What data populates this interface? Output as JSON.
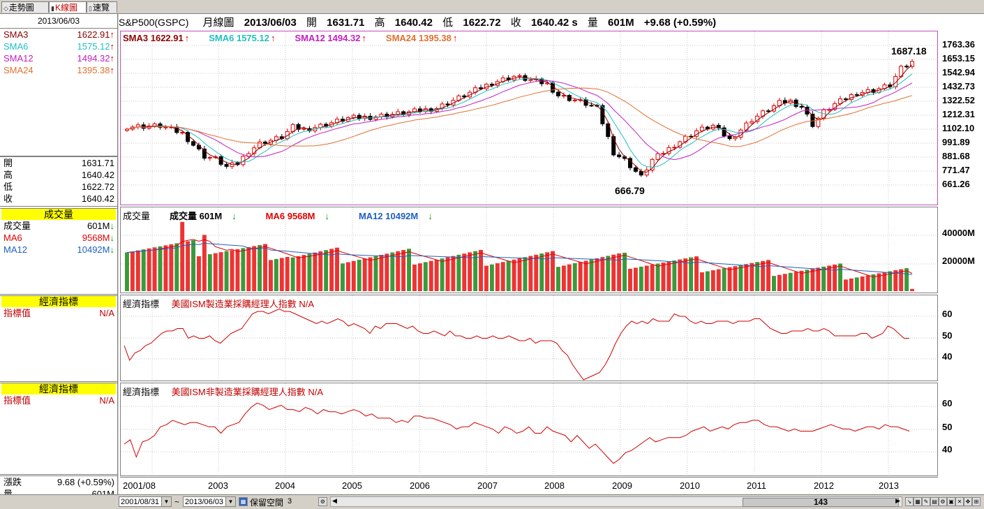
{
  "tabs": [
    {
      "label": "走勢圖",
      "active": false
    },
    {
      "label": "K線圖",
      "active": true
    },
    {
      "label": "速覽",
      "active": false
    }
  ],
  "left": {
    "date": "2013/06/03",
    "sma": [
      {
        "label": "SMA3",
        "value": "1622.91",
        "color": "#8b0000"
      },
      {
        "label": "SMA6",
        "value": "1575.12",
        "color": "#20c0c0"
      },
      {
        "label": "SMA12",
        "value": "1494.32",
        "color": "#c020c0"
      },
      {
        "label": "SMA24",
        "value": "1395.38",
        "color": "#e07030"
      }
    ],
    "ohlc": [
      {
        "label": "開",
        "value": "1631.71"
      },
      {
        "label": "高",
        "value": "1640.42"
      },
      {
        "label": "低",
        "value": "1622.72"
      },
      {
        "label": "收",
        "value": "1640.42"
      }
    ],
    "volume_header": "成交量",
    "volume": [
      {
        "label": "成交量",
        "value": "601M",
        "color": "#000000"
      },
      {
        "label": "MA6",
        "value": "9568M",
        "color": "#e00000"
      },
      {
        "label": "MA12",
        "value": "10492M",
        "color": "#2060c0"
      }
    ],
    "econ1_header": "經濟指標",
    "econ1_label": "指標值",
    "econ1_value": "N/A",
    "econ2_header": "經濟指標",
    "econ2_label": "指標值",
    "econ2_value": "N/A",
    "change_label": "漲跌",
    "change_value": "9.68 (+0.59%)",
    "qty_label": "量",
    "qty_value": "601M"
  },
  "header": {
    "symbol": "S&P500(GSPC)",
    "period": "月線圖",
    "date": "2013/06/03",
    "open_label": "開",
    "open": "1631.71",
    "high_label": "高",
    "high": "1640.42",
    "low_label": "低",
    "low": "1622.72",
    "close_label": "收",
    "close": "1640.42 s",
    "vol_label": "量",
    "vol": "601M",
    "change": "+9.68 (+0.59%)"
  },
  "price_pane": {
    "legend": [
      {
        "text": "SMA3 1622.91",
        "color": "#8b0000"
      },
      {
        "text": "SMA6 1575.12",
        "color": "#20c0c0"
      },
      {
        "text": "SMA12 1494.32",
        "color": "#c020c0"
      },
      {
        "text": "SMA24 1395.38",
        "color": "#e07030"
      }
    ],
    "high_marker": "1687.18",
    "low_marker": "666.79",
    "y_ticks": [
      "1763.36",
      "1653.15",
      "1542.94",
      "1432.73",
      "1322.52",
      "1212.31",
      "1102.10",
      "991.89",
      "881.68",
      "771.47",
      "661.26"
    ]
  },
  "volume_pane": {
    "title": "成交量",
    "legend": [
      {
        "text": "成交量 601M",
        "color": "#000000"
      },
      {
        "text": "MA6 9568M",
        "color": "#e00000"
      },
      {
        "text": "MA12 10492M",
        "color": "#2060c0"
      }
    ],
    "y_ticks": [
      "40000M",
      "20000M"
    ]
  },
  "econ1_pane": {
    "title": "經濟指標",
    "name": "美國ISM製造業採購經理人指數 N/A",
    "y_ticks": [
      "60",
      "50",
      "40"
    ]
  },
  "econ2_pane": {
    "title": "經濟指標",
    "name": "美國ISM非製造業採購經理人指數 N/A",
    "y_ticks": [
      "60",
      "50",
      "40"
    ]
  },
  "x_ticks": [
    "2001/08",
    "2003",
    "2004",
    "2005",
    "2006",
    "2007",
    "2008",
    "2009",
    "2010",
    "2011",
    "2012",
    "2013"
  ],
  "bottom": {
    "from_date": "2001/08/31",
    "tilde": "~",
    "to_date": "2013/06/03",
    "keep_label": "保留空間",
    "keep_value": "3",
    "scroll_count": "143"
  },
  "chart_data": [
    {
      "type": "line",
      "title": "S&P500(GSPC) 月線圖",
      "x_range": [
        "2001/08",
        "2013/06"
      ],
      "ylim": [
        661.26,
        1763.36
      ],
      "series": [
        {
          "name": "SMA3",
          "last": 1622.91
        },
        {
          "name": "SMA6",
          "last": 1575.12
        },
        {
          "name": "SMA12",
          "last": 1494.32
        },
        {
          "name": "SMA24",
          "last": 1395.38
        }
      ],
      "annotations": [
        {
          "text": "1687.18",
          "where": "high"
        },
        {
          "text": "666.79",
          "where": "low"
        }
      ],
      "last_bar": {
        "open": 1631.71,
        "high": 1640.42,
        "low": 1622.72,
        "close": 1640.42
      }
    },
    {
      "type": "bar",
      "title": "成交量",
      "series": [
        {
          "name": "成交量",
          "last": "601M"
        },
        {
          "name": "MA6",
          "last": "9568M"
        },
        {
          "name": "MA12",
          "last": "10492M"
        }
      ]
    },
    {
      "type": "line",
      "title": "美國ISM製造業採購經理人指數",
      "ylim": [
        35,
        63
      ],
      "values": [
        47,
        41,
        44,
        45,
        47,
        48,
        50,
        52,
        53,
        53,
        54,
        54,
        50,
        51,
        50,
        50,
        51,
        49,
        48,
        50,
        52,
        53,
        54,
        57,
        60,
        61,
        61,
        60,
        61,
        62,
        61,
        61,
        60,
        59,
        58,
        57,
        56,
        57,
        56,
        57,
        58,
        57,
        55,
        56,
        55,
        54,
        52,
        55,
        54,
        56,
        56,
        56,
        55,
        54,
        55,
        53,
        52,
        52,
        53,
        52,
        51,
        53,
        51,
        51,
        50,
        50,
        51,
        50,
        50,
        51,
        50,
        50,
        51,
        50,
        49,
        49,
        50,
        48,
        49,
        49,
        49,
        48,
        45,
        43,
        39,
        36,
        33,
        34,
        35,
        36,
        39,
        43,
        48,
        52,
        55,
        57,
        56,
        57,
        56,
        58,
        57,
        57,
        57,
        60,
        59,
        59,
        57,
        56,
        57,
        56,
        56,
        57,
        57,
        57,
        56,
        57,
        57,
        57,
        58,
        58,
        56,
        54,
        53,
        52,
        52,
        53,
        53,
        53,
        54,
        53,
        53,
        54,
        53,
        51,
        51,
        51,
        51,
        51,
        52,
        52,
        50,
        51,
        52,
        55,
        54,
        52,
        50,
        50
      ]
    },
    {
      "type": "line",
      "title": "美國ISM非製造業採購經理人指數",
      "ylim": [
        35,
        70
      ],
      "values": [
        47,
        49,
        41,
        48,
        49,
        51,
        55,
        56,
        58,
        57,
        56,
        57,
        57,
        56,
        55,
        55,
        52,
        55,
        56,
        57,
        61,
        64,
        66,
        65,
        63,
        64,
        65,
        63,
        63,
        62,
        64,
        63,
        61,
        63,
        62,
        62,
        61,
        62,
        63,
        62,
        60,
        61,
        59,
        59,
        59,
        57,
        58,
        57,
        60,
        60,
        59,
        59,
        58,
        57,
        56,
        54,
        55,
        55,
        57,
        56,
        55,
        54,
        52,
        55,
        54,
        52,
        53,
        55,
        52,
        52,
        55,
        53,
        52,
        51,
        48,
        51,
        48,
        45,
        47,
        44,
        41,
        38,
        40,
        43,
        44,
        46,
        48,
        50,
        48,
        49,
        50,
        50,
        50,
        51,
        53,
        54,
        55,
        53,
        54,
        55,
        54,
        56,
        57,
        57,
        58,
        58,
        56,
        55,
        55,
        54,
        53,
        54,
        53,
        53,
        53,
        54,
        55,
        56,
        55,
        54,
        54,
        53,
        54,
        55,
        55,
        54,
        56,
        55,
        55,
        54,
        53
      ]
    }
  ]
}
